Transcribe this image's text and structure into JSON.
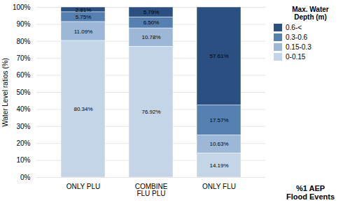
{
  "chart_data": {
    "type": "bar",
    "stacked": true,
    "categories": [
      "ONLY PLU",
      "COMBINE\nFLU PLU",
      "ONLY FLU"
    ],
    "series": [
      {
        "name": "0-0.15",
        "color": "#c5d5e8",
        "values": [
          80.34,
          76.92,
          14.19
        ],
        "value_labels": [
          "80.34%",
          "76.92%",
          "14.19%"
        ]
      },
      {
        "name": "0.15-0.3",
        "color": "#9db8d6",
        "values": [
          11.09,
          10.78,
          10.63
        ],
        "value_labels": [
          "11.09%",
          "10.78%",
          "10.63%"
        ]
      },
      {
        "name": "0.3-0.6",
        "color": "#5580b0",
        "values": [
          5.75,
          6.5,
          17.57
        ],
        "value_labels": [
          "5.75%",
          "6.50%",
          "17.57%"
        ]
      },
      {
        "name": "0.6-<",
        "color": "#2b4f80",
        "values": [
          2.81,
          5.79,
          57.61
        ],
        "value_labels": [
          "2.81%",
          "5.79%",
          "57.61%"
        ]
      }
    ],
    "ylabel": "Water Level ratios (%)",
    "xlabel": "%1 AEP\nFlood Events",
    "legend_title": "Max. Water\nDepth (m)",
    "legend": "right",
    "ylim": [
      0,
      100
    ],
    "yticks": [
      {
        "value": 0,
        "label": "0%"
      },
      {
        "value": 10,
        "label": "10%"
      },
      {
        "value": 20,
        "label": "20%"
      },
      {
        "value": 30,
        "label": "30%"
      },
      {
        "value": 40,
        "label": "40%"
      },
      {
        "value": 50,
        "label": "50%"
      },
      {
        "value": 60,
        "label": "60%"
      },
      {
        "value": 70,
        "label": "70%"
      },
      {
        "value": 80,
        "label": "80%"
      },
      {
        "value": 90,
        "label": "90%"
      },
      {
        "value": 100,
        "label": "100%"
      }
    ],
    "grid": true,
    "data_labels": true
  }
}
